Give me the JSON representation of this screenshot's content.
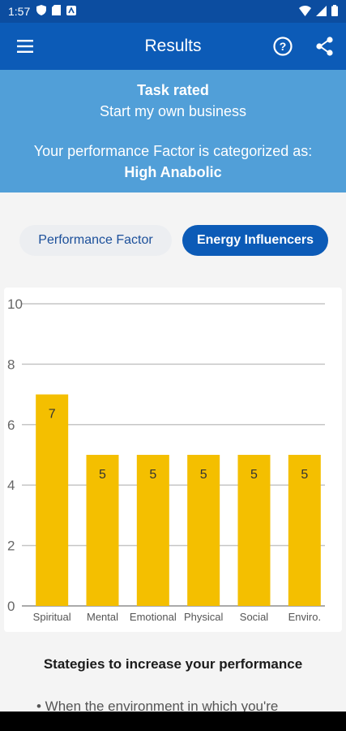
{
  "status": {
    "time": "1:57"
  },
  "app_bar": {
    "title": "Results",
    "icons": [
      "menu-icon",
      "help-icon",
      "share-icon"
    ]
  },
  "banner": {
    "task_label": "Task rated",
    "task_name": "Start my own business",
    "category_prefix": "Your performance Factor is categorized as:",
    "category": "High Anabolic"
  },
  "tabs": [
    {
      "label": "Performance Factor",
      "selected": false
    },
    {
      "label": "Energy Influencers",
      "selected": true
    }
  ],
  "chart_data": {
    "type": "bar",
    "categories": [
      "Spiritual",
      "Mental",
      "Emotional",
      "Physical",
      "Social",
      "Enviro."
    ],
    "values": [
      7,
      5,
      5,
      5,
      5,
      5
    ],
    "ylim": [
      0,
      10
    ],
    "yticks": [
      0,
      2,
      4,
      6,
      8,
      10
    ],
    "grid": true,
    "bar_color": "#f4bf00"
  },
  "strategies": {
    "title": "Stategies to increase your performance",
    "first_item": "• When the environment in which you're"
  },
  "colors": {
    "primary": "#0c5bb7",
    "banner": "#519fd8",
    "bar": "#f4bf00"
  }
}
